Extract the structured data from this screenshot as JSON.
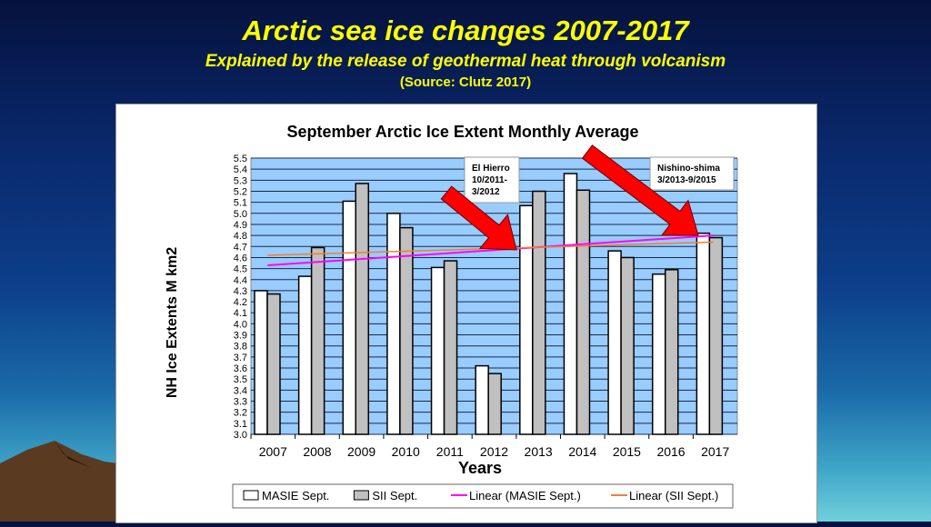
{
  "slide": {
    "title": "Arctic sea ice changes 2007-2017",
    "subtitle": "Explained by the release of geothermal heat through volcanism",
    "source": "(Source: Clutz 2017)"
  },
  "chart_data": {
    "type": "bar",
    "title": "September Arctic Ice Extent Monthly Average",
    "xlabel": "Years",
    "ylabel": "NH Ice Extents M km2",
    "ylim": [
      3.0,
      5.5
    ],
    "yticks": [
      "3.0",
      "3.1",
      "3.2",
      "3.3",
      "3.4",
      "3.5",
      "3.6",
      "3.7",
      "3.8",
      "3.9",
      "4.0",
      "4.1",
      "4.2",
      "4.3",
      "4.4",
      "4.5",
      "4.6",
      "4.7",
      "4.8",
      "4.9",
      "5.0",
      "5.1",
      "5.2",
      "5.3",
      "5.4",
      "5.5"
    ],
    "grid": true,
    "categories": [
      "2007",
      "2008",
      "2009",
      "2010",
      "2011",
      "2012",
      "2013",
      "2014",
      "2015",
      "2016",
      "2017"
    ],
    "series": [
      {
        "name": "MASIE Sept.",
        "color": "#ffffff",
        "values": [
          4.3,
          4.43,
          5.11,
          5.0,
          4.51,
          3.62,
          5.07,
          5.36,
          4.66,
          4.45,
          4.82
        ]
      },
      {
        "name": "SII Sept.",
        "color": "#c0c0c0",
        "values": [
          4.27,
          4.69,
          5.27,
          4.87,
          4.57,
          3.55,
          5.2,
          5.21,
          4.6,
          4.49,
          4.78
        ]
      }
    ],
    "trendlines": [
      {
        "name": "Linear (MASIE Sept.)",
        "color": "#ff00ff",
        "start": 4.53,
        "end": 4.8
      },
      {
        "name": "Linear (SII Sept.)",
        "color": "#f08030",
        "start": 4.62,
        "end": 4.74
      }
    ],
    "legend": "bottom",
    "plot_background": "#99ccff",
    "annotations": [
      {
        "lines": [
          "El Hierro",
          "10/2011-",
          "3/2012"
        ],
        "arrow_color": "#ff0000"
      },
      {
        "lines": [
          "Nishino-shima",
          "3/2013-9/2015"
        ],
        "arrow_color": "#ff0000"
      }
    ]
  }
}
